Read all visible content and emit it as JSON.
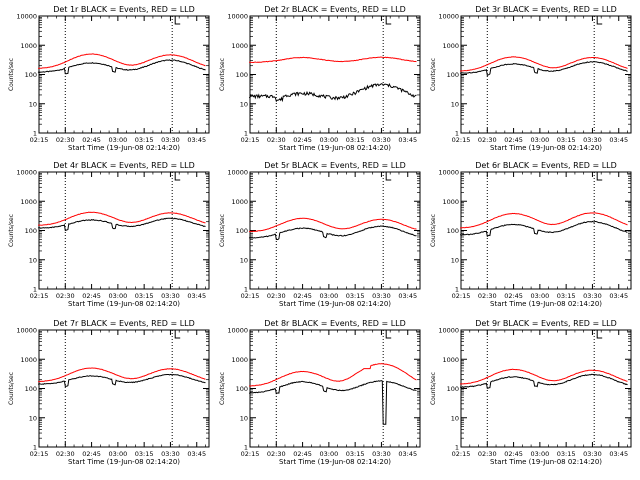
{
  "chart_data": [
    {
      "type": "line",
      "title": "Det 1r BLACK = Events, RED = LLD",
      "xlabel": "Start Time (19-Jun-08 02:14:20)",
      "ylabel": "Counts/sec",
      "yscale": "log",
      "ylim": [
        1,
        10000
      ],
      "xlim": [
        "02:15",
        "03:52"
      ],
      "x_ticks": [
        "02:15",
        "02:30",
        "02:45",
        "03:00",
        "03:15",
        "03:30",
        "03:45"
      ],
      "y_ticks": [
        "1",
        "10",
        "100",
        "1000",
        "10000"
      ],
      "marker_times": [
        "02:30",
        "03:31"
      ],
      "profile": "dip",
      "series": [
        {
          "color": "#000000",
          "base": 120,
          "peak1": 250,
          "peak2": 310
        },
        {
          "color": "#ff0000",
          "base": 160,
          "peak1": 500,
          "peak2": 470
        }
      ]
    },
    {
      "type": "line",
      "title": "Det 2r BLACK = Events, RED = LLD",
      "xlabel": "Start Time (19-Jun-08 02:14:20)",
      "ylabel": "Counts/sec",
      "yscale": "log",
      "ylim": [
        1,
        10000
      ],
      "xlim": [
        "02:15",
        "03:52"
      ],
      "x_ticks": [
        "02:15",
        "02:30",
        "02:45",
        "03:00",
        "03:15",
        "03:30",
        "03:45"
      ],
      "y_ticks": [
        "1",
        "10",
        "100",
        "1000",
        "10000"
      ],
      "marker_times": [
        "02:30",
        "03:31"
      ],
      "profile": "det2",
      "series": [
        {
          "color": "#000000",
          "base": 18,
          "peak1": 30,
          "peak2": 60
        },
        {
          "color": "#ff0000",
          "base": 260,
          "peak1": 380,
          "peak2": 390
        }
      ]
    },
    {
      "type": "line",
      "title": "Det 3r BLACK = Events, RED = LLD",
      "xlabel": "Start Time (19-Jun-08 02:14:20)",
      "ylabel": "Counts/sec",
      "yscale": "log",
      "ylim": [
        1,
        10000
      ],
      "xlim": [
        "02:15",
        "03:52"
      ],
      "x_ticks": [
        "02:15",
        "02:30",
        "02:45",
        "03:00",
        "03:15",
        "03:30",
        "03:45"
      ],
      "y_ticks": [
        "1",
        "10",
        "100",
        "1000",
        "10000"
      ],
      "marker_times": [
        "02:30",
        "03:31"
      ],
      "profile": "dip",
      "series": [
        {
          "color": "#000000",
          "base": 110,
          "peak1": 230,
          "peak2": 270
        },
        {
          "color": "#ff0000",
          "base": 130,
          "peak1": 400,
          "peak2": 380
        }
      ]
    },
    {
      "type": "line",
      "title": "Det 4r BLACK = Events, RED = LLD",
      "xlabel": "Start Time (19-Jun-08 02:14:20)",
      "ylabel": "Counts/sec",
      "yscale": "log",
      "ylim": [
        1,
        10000
      ],
      "xlim": [
        "02:15",
        "03:52"
      ],
      "x_ticks": [
        "02:15",
        "02:30",
        "02:45",
        "03:00",
        "03:15",
        "03:30",
        "03:45"
      ],
      "y_ticks": [
        "1",
        "10",
        "100",
        "1000",
        "10000"
      ],
      "marker_times": [
        "02:30",
        "03:31"
      ],
      "profile": "dip",
      "series": [
        {
          "color": "#000000",
          "base": 120,
          "peak1": 230,
          "peak2": 260
        },
        {
          "color": "#ff0000",
          "base": 150,
          "peak1": 420,
          "peak2": 400
        }
      ]
    },
    {
      "type": "line",
      "title": "Det 5r BLACK = Events, RED = LLD",
      "xlabel": "Start Time (19-Jun-08 02:14:20)",
      "ylabel": "Counts/sec",
      "yscale": "log",
      "ylim": [
        1,
        10000
      ],
      "xlim": [
        "02:15",
        "03:52"
      ],
      "x_ticks": [
        "02:15",
        "02:30",
        "02:45",
        "03:00",
        "03:15",
        "03:30",
        "03:45"
      ],
      "y_ticks": [
        "1",
        "10",
        "100",
        "1000",
        "10000"
      ],
      "marker_times": [
        "02:30",
        "03:31"
      ],
      "profile": "dip",
      "series": [
        {
          "color": "#000000",
          "base": 55,
          "peak1": 120,
          "peak2": 140
        },
        {
          "color": "#ff0000",
          "base": 90,
          "peak1": 260,
          "peak2": 240
        }
      ]
    },
    {
      "type": "line",
      "title": "Det 6r BLACK = Events, RED = LLD",
      "xlabel": "Start Time (19-Jun-08 02:14:20)",
      "ylabel": "Counts/sec",
      "yscale": "log",
      "ylim": [
        1,
        10000
      ],
      "xlim": [
        "02:15",
        "03:52"
      ],
      "x_ticks": [
        "02:15",
        "02:30",
        "02:45",
        "03:00",
        "03:15",
        "03:30",
        "03:45"
      ],
      "y_ticks": [
        "1",
        "10",
        "100",
        "1000",
        "10000"
      ],
      "marker_times": [
        "02:30",
        "03:31"
      ],
      "profile": "dip",
      "series": [
        {
          "color": "#000000",
          "base": 70,
          "peak1": 160,
          "peak2": 200
        },
        {
          "color": "#ff0000",
          "base": 120,
          "peak1": 380,
          "peak2": 400
        }
      ]
    },
    {
      "type": "line",
      "title": "Det 7r BLACK = Events, RED = LLD",
      "xlabel": "Start Time (19-Jun-08 02:14:20)",
      "ylabel": "Counts/sec",
      "yscale": "log",
      "ylim": [
        1,
        10000
      ],
      "xlim": [
        "02:15",
        "03:52"
      ],
      "x_ticks": [
        "02:15",
        "02:30",
        "02:45",
        "03:00",
        "03:15",
        "03:30",
        "03:45"
      ],
      "y_ticks": [
        "1",
        "10",
        "100",
        "1000",
        "10000"
      ],
      "marker_times": [
        "02:30",
        "03:31"
      ],
      "profile": "dip",
      "series": [
        {
          "color": "#000000",
          "base": 140,
          "peak1": 270,
          "peak2": 300
        },
        {
          "color": "#ff0000",
          "base": 170,
          "peak1": 500,
          "peak2": 470
        }
      ]
    },
    {
      "type": "line",
      "title": "Det 8r BLACK = Events, RED = LLD",
      "xlabel": "Start Time (19-Jun-08 02:14:20)",
      "ylabel": "Counts/sec",
      "yscale": "log",
      "ylim": [
        1,
        10000
      ],
      "xlim": [
        "02:15",
        "03:52"
      ],
      "x_ticks": [
        "02:15",
        "02:30",
        "02:45",
        "03:00",
        "03:15",
        "03:30",
        "03:45"
      ],
      "y_ticks": [
        "1",
        "10",
        "100",
        "1000",
        "10000"
      ],
      "marker_times": [
        "02:30",
        "03:31"
      ],
      "profile": "det8",
      "series": [
        {
          "color": "#000000",
          "base": 70,
          "peak1": 170,
          "peak2": 180
        },
        {
          "color": "#ff0000",
          "base": 120,
          "peak1": 380,
          "peak2": 700
        }
      ]
    },
    {
      "type": "line",
      "title": "Det 9r BLACK = Events, RED = LLD",
      "xlabel": "Start Time (19-Jun-08 02:14:20)",
      "ylabel": "Counts/sec",
      "yscale": "log",
      "ylim": [
        1,
        10000
      ],
      "xlim": [
        "02:15",
        "03:52"
      ],
      "x_ticks": [
        "02:15",
        "02:30",
        "02:45",
        "03:00",
        "03:15",
        "03:30",
        "03:45"
      ],
      "y_ticks": [
        "1",
        "10",
        "100",
        "1000",
        "10000"
      ],
      "marker_times": [
        "02:30",
        "03:31"
      ],
      "profile": "dip",
      "series": [
        {
          "color": "#000000",
          "base": 110,
          "peak1": 250,
          "peak2": 300
        },
        {
          "color": "#ff0000",
          "base": 140,
          "peak1": 450,
          "peak2": 420
        }
      ]
    }
  ]
}
